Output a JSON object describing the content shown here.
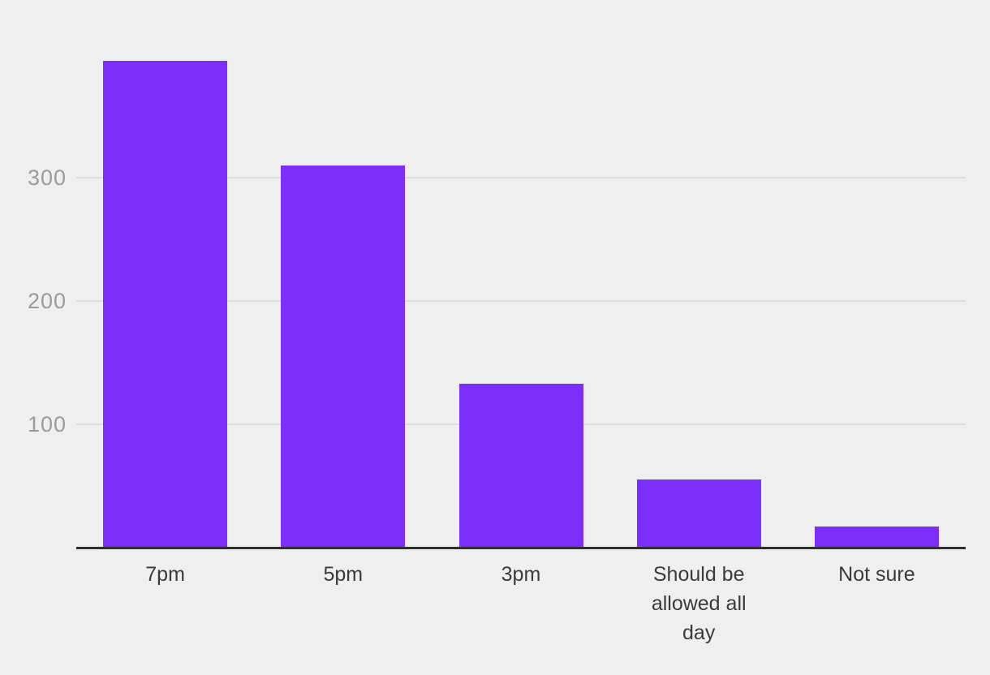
{
  "chart_data": {
    "type": "bar",
    "categories": [
      "7pm",
      "5pm",
      "3pm",
      "Should be allowed all day",
      "Not sure"
    ],
    "values": [
      395,
      310,
      133,
      55,
      17
    ],
    "title": "",
    "xlabel": "",
    "ylabel": "",
    "ylim": [
      0,
      400
    ],
    "yticks": [
      100,
      200,
      300
    ],
    "grid": true,
    "legend": false,
    "colors": {
      "bar": "#7c2ffa",
      "background": "#efefef",
      "gridline": "#dcdcdc",
      "axis_line": "#2f2f2f",
      "y_tick_text": "#9b9b9b",
      "x_tick_text": "#3a3a3a"
    }
  }
}
